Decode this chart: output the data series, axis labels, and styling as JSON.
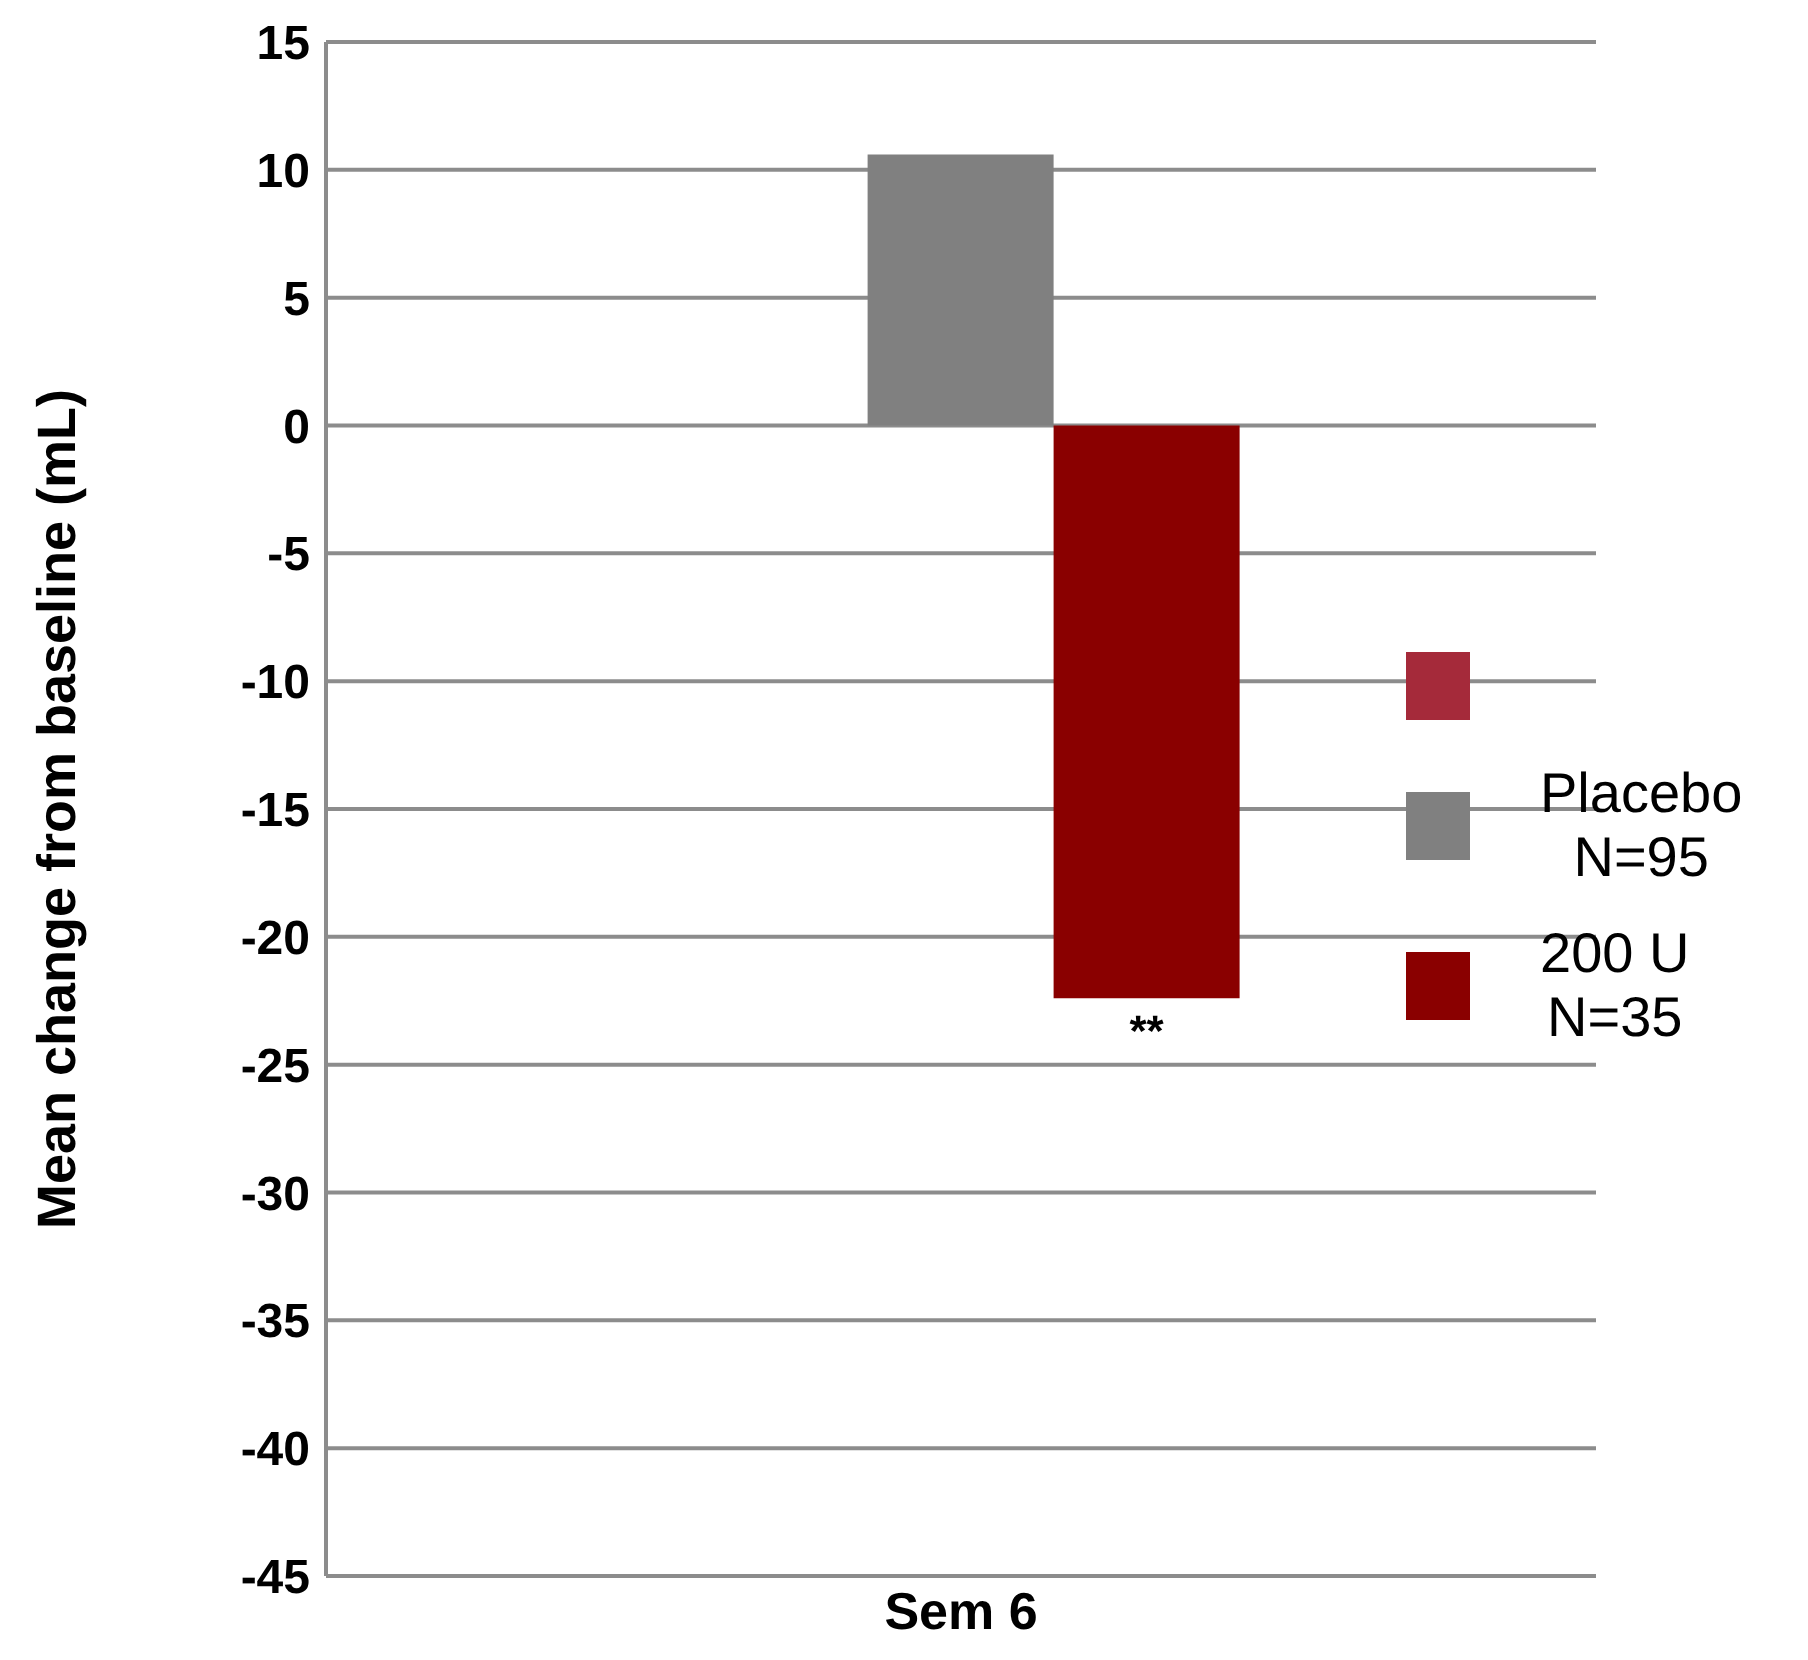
{
  "chart_data": {
    "type": "bar",
    "ylabel": "Mean change from baseline (mL)",
    "categories": [
      "Sem 6"
    ],
    "series": [
      {
        "color": "#a52a3a",
        "values": [
          null
        ]
      },
      {
        "name": "Placebo\nN=95",
        "color": "#808080",
        "values": [
          10.6
        ]
      },
      {
        "name": "200 U\nN=35",
        "color": "#8a0000",
        "values": [
          -22.4
        ]
      }
    ],
    "ylim": [
      -45,
      15
    ],
    "yticks": [
      -45,
      -40,
      -35,
      -30,
      -25,
      -20,
      -15,
      -10,
      -5,
      0,
      5,
      10,
      15
    ],
    "grid": "y",
    "legend": "right",
    "annotations": [
      "**"
    ]
  }
}
